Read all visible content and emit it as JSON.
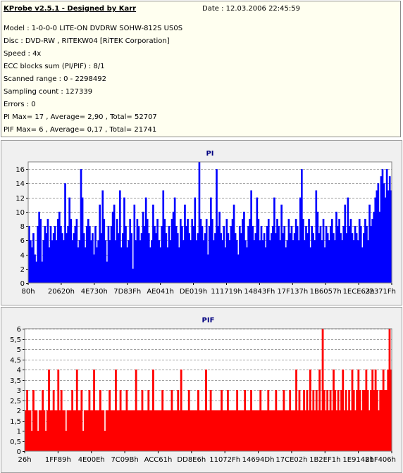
{
  "header": {
    "title": "KProbe v2.5.1 - Designed by Karr",
    "date": "Date : 12.03.2006 22:45:59",
    "lines": [
      "Model : 1-0-0-0 LITE-ON DVDRW SOHW-812S  US0S",
      "Disc : DVD-RW , RITEKW04 [RiTEK Corporation]",
      "Speed : 4x",
      "ECC blocks sum (PI/PIF) : 8/1",
      "Scanned range : 0 - 2298492",
      "Sampling count : 127339",
      "Errors : 0",
      "PI Max= 17 , Average= 2,90 , Total= 52707",
      "PIF Max= 6 , Average= 0,17 , Total= 21741"
    ]
  },
  "colors": {
    "pi": "#0000ff",
    "pif": "#ff0000",
    "title": "#000080"
  },
  "chart_data": [
    {
      "type": "bar",
      "title": "PI",
      "ylim": [
        0,
        17
      ],
      "yticks": [
        "0",
        "2",
        "4",
        "6",
        "8",
        "10",
        "12",
        "14",
        "16"
      ],
      "xticks": [
        "80h",
        "20620h",
        "4E730h",
        "7D83Fh",
        "AE041h",
        "DE019h",
        "111719h",
        "14843Fh",
        "17F137h",
        "1B6057h",
        "1ECE63h",
        "22371Fh"
      ],
      "grid": true,
      "series": [
        {
          "values": [
            8,
            6,
            5,
            7,
            4,
            3,
            8,
            10,
            9,
            3,
            6,
            8,
            7,
            9,
            5,
            8,
            6,
            7,
            8,
            6,
            9,
            10,
            8,
            7,
            6,
            14,
            7,
            8,
            12,
            9,
            6,
            7,
            8,
            9,
            5,
            6,
            16,
            12,
            7,
            5,
            8,
            9,
            8,
            6,
            7,
            4,
            8,
            5,
            6,
            11,
            7,
            13,
            9,
            6,
            3,
            8,
            6,
            8,
            10,
            11,
            6,
            9,
            7,
            13,
            5,
            7,
            12,
            8,
            5,
            6,
            9,
            7,
            2,
            11,
            6,
            9,
            8,
            6,
            7,
            10,
            8,
            12,
            9,
            7,
            5,
            6,
            11,
            8,
            7,
            9,
            6,
            5,
            8,
            13,
            9,
            7,
            5,
            8,
            6,
            9,
            10,
            12,
            8,
            7,
            5,
            9,
            8,
            6,
            11,
            8,
            9,
            7,
            6,
            9,
            8,
            12,
            6,
            7,
            17,
            9,
            8,
            6,
            7,
            9,
            4,
            8,
            12,
            9,
            6,
            7,
            16,
            8,
            10,
            7,
            6,
            8,
            5,
            9,
            7,
            6,
            8,
            9,
            11,
            7,
            6,
            4,
            8,
            7,
            9,
            10,
            6,
            5,
            8,
            9,
            13,
            8,
            6,
            7,
            12,
            9,
            6,
            8,
            6,
            7,
            5,
            8,
            9,
            6,
            7,
            8,
            12,
            7,
            9,
            8,
            6,
            11,
            7,
            8,
            5,
            6,
            9,
            7,
            8,
            6,
            7,
            9,
            8,
            6,
            12,
            16,
            9,
            6,
            8,
            7,
            9,
            5,
            8,
            7,
            6,
            13,
            10,
            7,
            8,
            6,
            9,
            5,
            8,
            7,
            6,
            8,
            9,
            7,
            6,
            10,
            8,
            9,
            7,
            6,
            8,
            11,
            7,
            12,
            8,
            9,
            7,
            6,
            8,
            7,
            6,
            9,
            8,
            5,
            7,
            9,
            8,
            6,
            11,
            8,
            9,
            10,
            12,
            13,
            14,
            10,
            15,
            16,
            14,
            12,
            16,
            13,
            15,
            13
          ]
        }
      ]
    },
    {
      "type": "bar",
      "title": "PIF",
      "ylim": [
        0,
        6
      ],
      "yticks": [
        "0",
        "0,5",
        "1",
        "1,5",
        "2",
        "2,5",
        "3",
        "3,5",
        "4",
        "4,5",
        "5",
        "5,5",
        "6"
      ],
      "xticks": [
        "26h",
        "1FF89h",
        "4E00Eh",
        "7C09Bh",
        "ACC61h",
        "DD8E6h",
        "11072Fh",
        "14694Dh",
        "17CE02h",
        "1B2EF1h",
        "1E9148h",
        "21F406h"
      ],
      "grid": true,
      "series": [
        {
          "values": [
            2,
            3,
            2,
            2,
            1,
            3,
            2,
            2,
            1,
            2,
            2,
            3,
            2,
            1,
            2,
            4,
            2,
            2,
            3,
            2,
            2,
            4,
            2,
            3,
            2,
            2,
            1,
            2,
            2,
            2,
            3,
            2,
            2,
            4,
            2,
            2,
            3,
            1,
            2,
            2,
            2,
            3,
            2,
            2,
            4,
            2,
            2,
            2,
            3,
            2,
            2,
            1,
            2,
            2,
            3,
            2,
            2,
            2,
            4,
            2,
            2,
            3,
            2,
            2,
            2,
            3,
            2,
            2,
            2,
            2,
            2,
            4,
            2,
            2,
            2,
            3,
            2,
            2,
            2,
            3,
            2,
            2,
            4,
            2,
            2,
            2,
            2,
            2,
            3,
            2,
            2,
            2,
            2,
            2,
            3,
            2,
            2,
            2,
            3,
            2,
            4,
            2,
            2,
            2,
            2,
            3,
            2,
            2,
            2,
            2,
            2,
            3,
            2,
            2,
            2,
            2,
            4,
            2,
            2,
            3,
            2,
            2,
            2,
            2,
            2,
            2,
            3,
            2,
            2,
            2,
            3,
            2,
            2,
            2,
            2,
            2,
            3,
            2,
            2,
            2,
            2,
            3,
            2,
            2,
            2,
            3,
            2,
            2,
            2,
            2,
            2,
            3,
            2,
            2,
            2,
            2,
            3,
            2,
            2,
            2,
            2,
            3,
            2,
            2,
            2,
            2,
            3,
            2,
            2,
            2,
            3,
            2,
            2,
            2,
            4,
            2,
            3,
            2,
            2,
            3,
            2,
            3,
            2,
            4,
            2,
            3,
            2,
            3,
            2,
            4,
            2,
            6,
            3,
            2,
            3,
            2,
            3,
            2,
            4,
            3,
            2,
            3,
            2,
            3,
            4,
            2,
            3,
            2,
            3,
            2,
            4,
            3,
            2,
            3,
            4,
            3,
            2,
            3,
            3,
            4,
            3,
            2,
            3,
            4,
            3,
            4,
            3,
            2,
            3,
            3,
            4,
            3,
            3,
            4,
            6,
            4
          ]
        }
      ]
    }
  ]
}
